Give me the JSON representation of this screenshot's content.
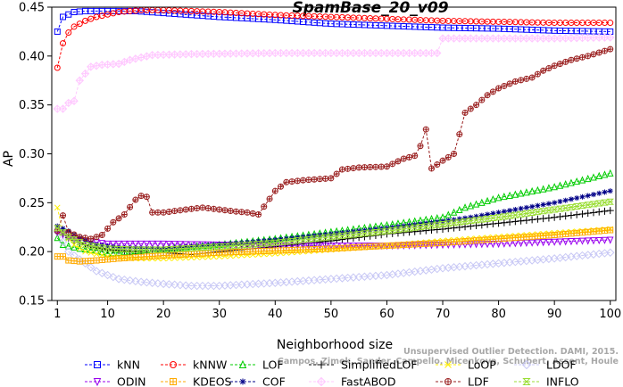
{
  "chart_data": {
    "type": "line",
    "title": "SpamBase_20_v09",
    "xlabel": "Neighborhood size",
    "ylabel": "AP",
    "xlim": [
      0,
      101
    ],
    "ylim": [
      0.15,
      0.45
    ],
    "xticks": [
      1,
      10,
      20,
      30,
      40,
      50,
      60,
      70,
      80,
      90,
      100
    ],
    "yticks": [
      0.15,
      0.2,
      0.25,
      0.3,
      0.35,
      0.4,
      0.45
    ],
    "legend_position": "bottom",
    "watermark": "Campos, Zimek, Sander, Campello, Micenkova, Schubert, Assent, Houle",
    "watermark_partial": "Unsupervised Outlier Detection. DAMI, 2015.",
    "series": [
      {
        "name": "kNN",
        "color": "#0000ff",
        "marker": "square",
        "points": [
          [
            1,
            0.425
          ],
          [
            2,
            0.44
          ],
          [
            4,
            0.445
          ],
          [
            6,
            0.446
          ],
          [
            10,
            0.446
          ],
          [
            15,
            0.446
          ],
          [
            20,
            0.444
          ],
          [
            30,
            0.44
          ],
          [
            40,
            0.437
          ],
          [
            50,
            0.433
          ],
          [
            60,
            0.431
          ],
          [
            70,
            0.429
          ],
          [
            80,
            0.428
          ],
          [
            90,
            0.426
          ],
          [
            100,
            0.425
          ]
        ]
      },
      {
        "name": "kNNW",
        "color": "#ff0000",
        "marker": "circle",
        "points": [
          [
            1,
            0.388
          ],
          [
            2,
            0.413
          ],
          [
            3,
            0.424
          ],
          [
            4,
            0.43
          ],
          [
            6,
            0.436
          ],
          [
            8,
            0.44
          ],
          [
            12,
            0.445
          ],
          [
            16,
            0.447
          ],
          [
            20,
            0.447
          ],
          [
            30,
            0.445
          ],
          [
            40,
            0.442
          ],
          [
            50,
            0.44
          ],
          [
            60,
            0.438
          ],
          [
            70,
            0.436
          ],
          [
            80,
            0.435
          ],
          [
            90,
            0.434
          ],
          [
            100,
            0.434
          ]
        ]
      },
      {
        "name": "LOF",
        "color": "#00cc00",
        "marker": "triangle-up",
        "points": [
          [
            1,
            0.214
          ],
          [
            2,
            0.207
          ],
          [
            5,
            0.203
          ],
          [
            8,
            0.201
          ],
          [
            10,
            0.198
          ],
          [
            14,
            0.2
          ],
          [
            20,
            0.203
          ],
          [
            30,
            0.207
          ],
          [
            40,
            0.213
          ],
          [
            50,
            0.22
          ],
          [
            60,
            0.227
          ],
          [
            70,
            0.235
          ],
          [
            74,
            0.245
          ],
          [
            80,
            0.255
          ],
          [
            90,
            0.266
          ],
          [
            100,
            0.28
          ]
        ]
      },
      {
        "name": "SimplifiedLOF",
        "color": "#000000",
        "marker": "plus",
        "points": [
          [
            1,
            0.221
          ],
          [
            3,
            0.214
          ],
          [
            6,
            0.207
          ],
          [
            10,
            0.202
          ],
          [
            15,
            0.2
          ],
          [
            20,
            0.199
          ],
          [
            25,
            0.197
          ],
          [
            30,
            0.2
          ],
          [
            40,
            0.205
          ],
          [
            50,
            0.211
          ],
          [
            60,
            0.218
          ],
          [
            70,
            0.223
          ],
          [
            80,
            0.229
          ],
          [
            90,
            0.235
          ],
          [
            100,
            0.242
          ]
        ]
      },
      {
        "name": "LoOP",
        "color": "#ffee00",
        "marker": "cross",
        "points": [
          [
            1,
            0.245
          ],
          [
            2,
            0.22
          ],
          [
            4,
            0.207
          ],
          [
            6,
            0.2
          ],
          [
            10,
            0.195
          ],
          [
            15,
            0.193
          ],
          [
            20,
            0.193
          ],
          [
            30,
            0.195
          ],
          [
            40,
            0.198
          ],
          [
            50,
            0.202
          ],
          [
            60,
            0.206
          ],
          [
            70,
            0.211
          ],
          [
            80,
            0.215
          ],
          [
            90,
            0.219
          ],
          [
            100,
            0.223
          ]
        ]
      },
      {
        "name": "LDOF",
        "color": "#c8c8f5",
        "marker": "diamond",
        "points": [
          [
            1,
            0.22
          ],
          [
            3,
            0.2
          ],
          [
            5,
            0.192
          ],
          [
            8,
            0.18
          ],
          [
            12,
            0.172
          ],
          [
            16,
            0.169
          ],
          [
            20,
            0.167
          ],
          [
            25,
            0.165
          ],
          [
            30,
            0.165
          ],
          [
            40,
            0.168
          ],
          [
            50,
            0.172
          ],
          [
            60,
            0.176
          ],
          [
            70,
            0.183
          ],
          [
            80,
            0.188
          ],
          [
            90,
            0.193
          ],
          [
            100,
            0.199
          ]
        ]
      },
      {
        "name": "ODIN",
        "color": "#9900ee",
        "marker": "triangle-down",
        "points": [
          [
            1,
            0.22
          ],
          [
            3,
            0.215
          ],
          [
            6,
            0.211
          ],
          [
            10,
            0.208
          ],
          [
            20,
            0.208
          ],
          [
            30,
            0.207
          ],
          [
            40,
            0.206
          ],
          [
            50,
            0.206
          ],
          [
            60,
            0.206
          ],
          [
            70,
            0.207
          ],
          [
            80,
            0.208
          ],
          [
            90,
            0.21
          ],
          [
            100,
            0.212
          ]
        ]
      },
      {
        "name": "KDEOS",
        "color": "#ffaa00",
        "marker": "boxplus",
        "points": [
          [
            2,
            0.195
          ],
          [
            3,
            0.191
          ],
          [
            5,
            0.19
          ],
          [
            8,
            0.191
          ],
          [
            12,
            0.193
          ],
          [
            20,
            0.196
          ],
          [
            30,
            0.199
          ],
          [
            40,
            0.201
          ],
          [
            50,
            0.203
          ],
          [
            60,
            0.206
          ],
          [
            70,
            0.209
          ],
          [
            80,
            0.213
          ],
          [
            90,
            0.217
          ],
          [
            100,
            0.222
          ]
        ]
      },
      {
        "name": "COF",
        "color": "#000088",
        "marker": "asterisk",
        "points": [
          [
            1,
            0.226
          ],
          [
            3,
            0.221
          ],
          [
            5,
            0.214
          ],
          [
            8,
            0.207
          ],
          [
            12,
            0.204
          ],
          [
            20,
            0.203
          ],
          [
            30,
            0.207
          ],
          [
            40,
            0.212
          ],
          [
            50,
            0.218
          ],
          [
            60,
            0.224
          ],
          [
            70,
            0.231
          ],
          [
            75,
            0.235
          ],
          [
            80,
            0.24
          ],
          [
            90,
            0.25
          ],
          [
            100,
            0.262
          ]
        ]
      },
      {
        "name": "FastABOD",
        "color": "#ffc8ff",
        "marker": "diamond-plus",
        "points": [
          [
            2,
            0.346
          ],
          [
            3,
            0.352
          ],
          [
            4,
            0.354
          ],
          [
            5,
            0.375
          ],
          [
            7,
            0.389
          ],
          [
            9,
            0.391
          ],
          [
            12,
            0.392
          ],
          [
            14,
            0.396
          ],
          [
            18,
            0.401
          ],
          [
            25,
            0.402
          ],
          [
            40,
            0.403
          ],
          [
            50,
            0.403
          ],
          [
            60,
            0.403
          ],
          [
            69,
            0.403
          ],
          [
            70,
            0.418
          ],
          [
            80,
            0.418
          ],
          [
            90,
            0.418
          ],
          [
            100,
            0.419
          ]
        ]
      },
      {
        "name": "LDF",
        "color": "#9a2020",
        "marker": "circle-plus",
        "points": [
          [
            1,
            0.221
          ],
          [
            2,
            0.237
          ],
          [
            3,
            0.22
          ],
          [
            5,
            0.215
          ],
          [
            7,
            0.213
          ],
          [
            9,
            0.217
          ],
          [
            11,
            0.23
          ],
          [
            13,
            0.238
          ],
          [
            15,
            0.253
          ],
          [
            16,
            0.257
          ],
          [
            17,
            0.256
          ],
          [
            18,
            0.24
          ],
          [
            20,
            0.24
          ],
          [
            24,
            0.243
          ],
          [
            27,
            0.245
          ],
          [
            30,
            0.243
          ],
          [
            33,
            0.241
          ],
          [
            35,
            0.24
          ],
          [
            37,
            0.238
          ],
          [
            38,
            0.246
          ],
          [
            40,
            0.262
          ],
          [
            42,
            0.271
          ],
          [
            45,
            0.273
          ],
          [
            50,
            0.275
          ],
          [
            52,
            0.284
          ],
          [
            55,
            0.286
          ],
          [
            60,
            0.287
          ],
          [
            63,
            0.295
          ],
          [
            65,
            0.298
          ],
          [
            66,
            0.308
          ],
          [
            67,
            0.325
          ],
          [
            68,
            0.285
          ],
          [
            70,
            0.293
          ],
          [
            72,
            0.3
          ],
          [
            73,
            0.32
          ],
          [
            74,
            0.342
          ],
          [
            76,
            0.35
          ],
          [
            78,
            0.36
          ],
          [
            80,
            0.367
          ],
          [
            83,
            0.374
          ],
          [
            86,
            0.378
          ],
          [
            88,
            0.385
          ],
          [
            90,
            0.39
          ],
          [
            93,
            0.396
          ],
          [
            96,
            0.4
          ],
          [
            100,
            0.407
          ]
        ]
      },
      {
        "name": "INFLO",
        "color": "#99dd33",
        "marker": "hourglass",
        "points": [
          [
            1,
            0.224
          ],
          [
            3,
            0.215
          ],
          [
            6,
            0.207
          ],
          [
            10,
            0.203
          ],
          [
            15,
            0.202
          ],
          [
            20,
            0.202
          ],
          [
            30,
            0.205
          ],
          [
            40,
            0.209
          ],
          [
            50,
            0.215
          ],
          [
            60,
            0.221
          ],
          [
            70,
            0.228
          ],
          [
            80,
            0.235
          ],
          [
            90,
            0.243
          ],
          [
            100,
            0.251
          ]
        ]
      }
    ]
  }
}
